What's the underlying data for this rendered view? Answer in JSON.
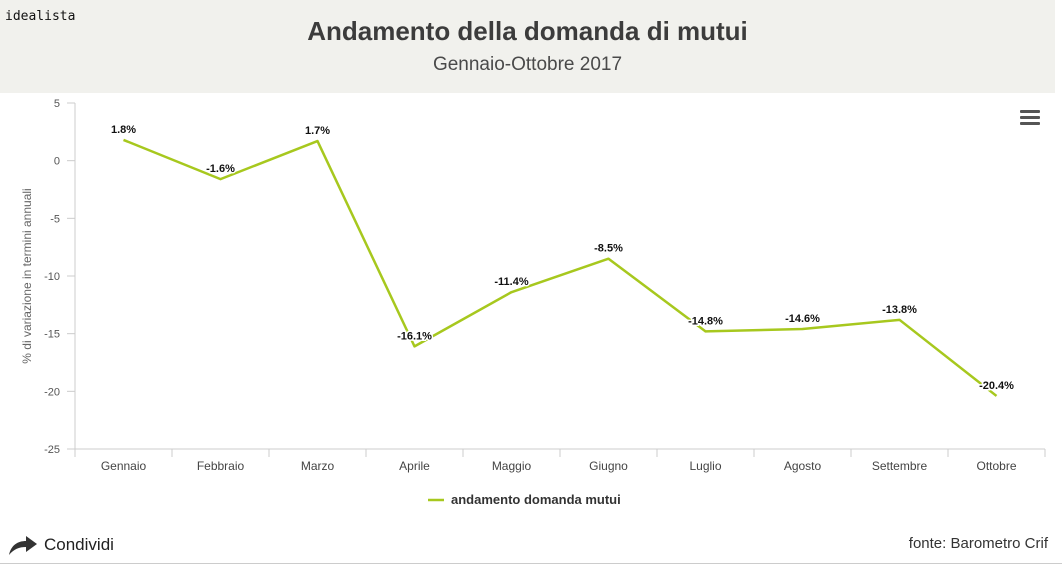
{
  "brand": "idealista",
  "share_label": "Condividi",
  "source_label": "fonte: Barometro Crif",
  "chart_data": {
    "type": "line",
    "title": "Andamento della domanda di mutui",
    "subtitle": "Gennaio-Ottobre 2017",
    "ylabel": "% di variazione in termini annuali",
    "xlabel": "",
    "ylim": [
      -25,
      5
    ],
    "yticks": [
      5,
      0,
      -5,
      -10,
      -15,
      -20,
      -25
    ],
    "categories": [
      "Gennaio",
      "Febbraio",
      "Marzo",
      "Aprile",
      "Maggio",
      "Giugno",
      "Luglio",
      "Agosto",
      "Settembre",
      "Ottobre"
    ],
    "series": [
      {
        "name": "andamento domanda mutui",
        "color": "#a7c81e",
        "values": [
          1.8,
          -1.6,
          1.7,
          -16.1,
          -11.4,
          -8.5,
          -14.8,
          -14.6,
          -13.8,
          -20.4
        ],
        "labels": [
          "1.8%",
          "-1.6%",
          "1.7%",
          "-16.1%",
          "-11.4%",
          "-8.5%",
          "-14.8%",
          "-14.6%",
          "-13.8%",
          "-20.4%"
        ]
      }
    ],
    "legend_position": "bottom-center",
    "grid": false
  }
}
